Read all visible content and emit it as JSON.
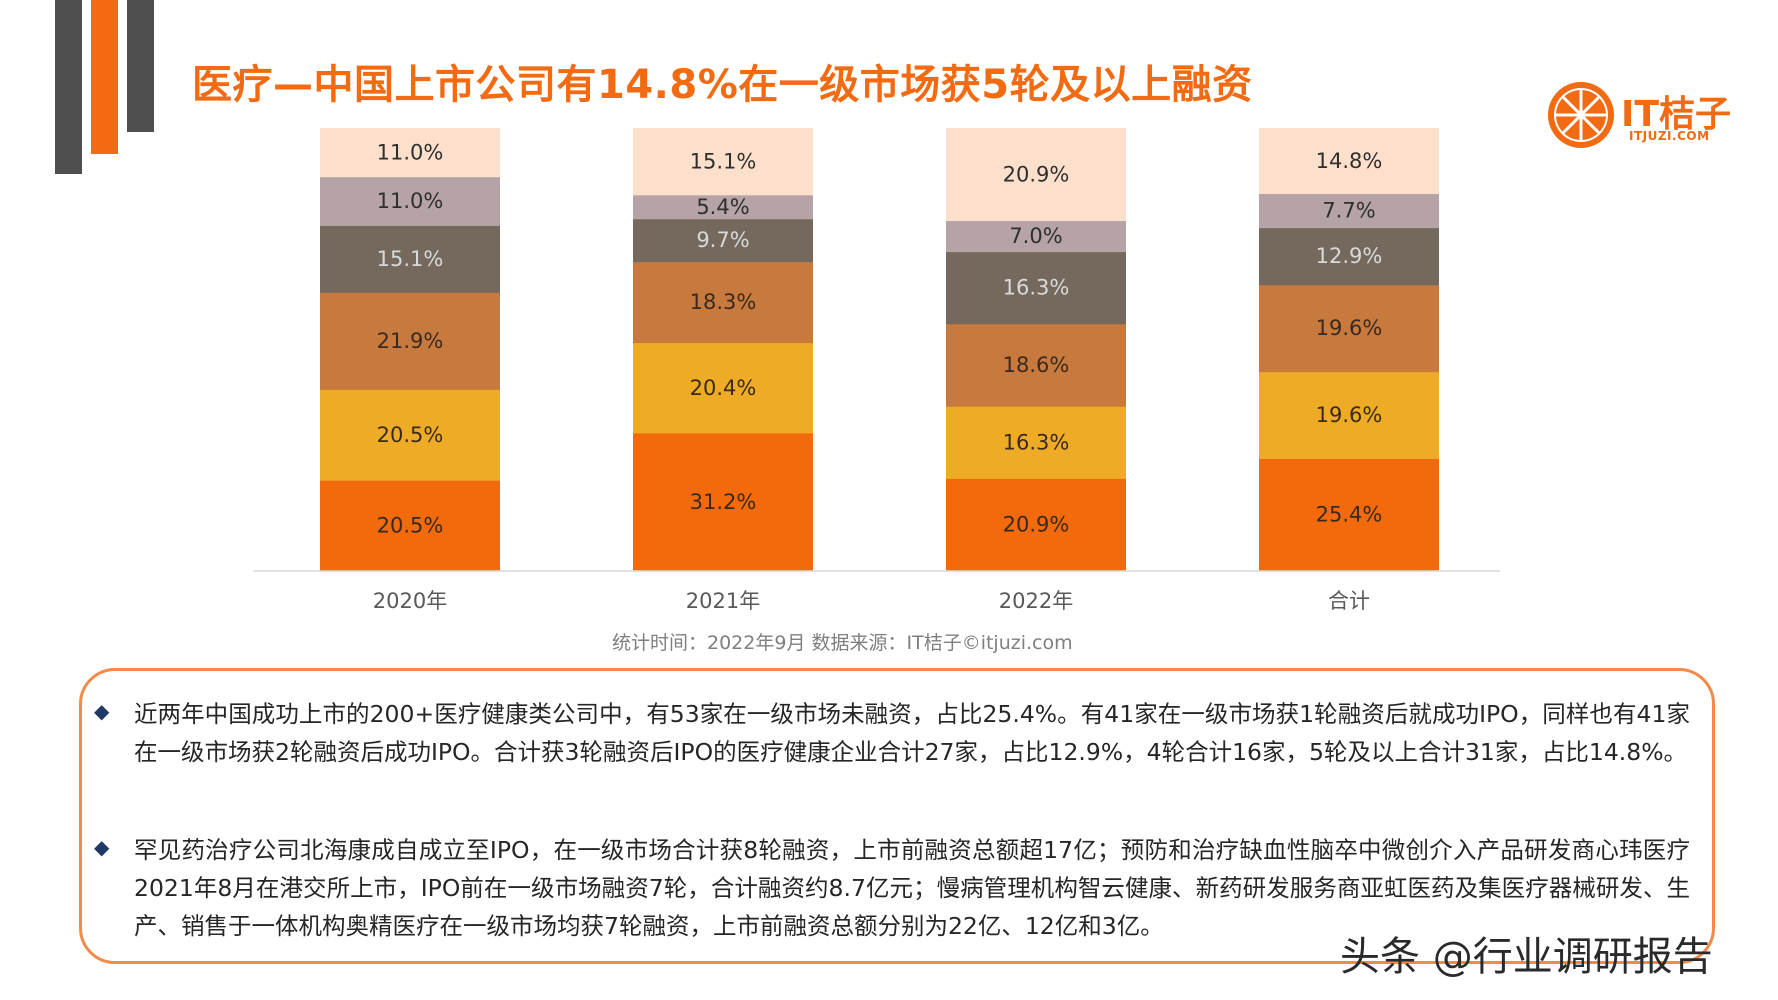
{
  "title": "医疗—中国上市公司有14.8%在一级市场获5轮及以上融资",
  "logo": {
    "name": "IT桔子",
    "url": "ITJUZI.COM"
  },
  "colors": {
    "accent": "#f26a12",
    "seg_0": "#f26a0c",
    "seg_1": "#eeab26",
    "seg_2": "#c87a3e",
    "seg_3": "#75695d",
    "seg_4": "#b5a3a6",
    "seg_5": "#fde0cc"
  },
  "chart_data": {
    "type": "bar",
    "stacked": true,
    "percent_stacked": true,
    "categories": [
      "2020年",
      "2021年",
      "2022年",
      "合计"
    ],
    "series": [
      {
        "values": [
          20.5,
          31.2,
          20.9,
          25.4
        ],
        "labels": [
          "20.5%",
          "31.2%",
          "20.9%",
          "25.4%"
        ]
      },
      {
        "values": [
          20.5,
          20.4,
          16.3,
          19.6
        ],
        "labels": [
          "20.5%",
          "20.4%",
          "16.3%",
          "19.6%"
        ]
      },
      {
        "values": [
          21.9,
          18.3,
          18.6,
          19.6
        ],
        "labels": [
          "21.9%",
          "18.3%",
          "18.6%",
          "19.6%"
        ]
      },
      {
        "values": [
          15.1,
          9.7,
          16.3,
          12.9
        ],
        "labels": [
          "15.1%",
          "9.7%",
          "16.3%",
          "12.9%"
        ]
      },
      {
        "values": [
          11.0,
          5.4,
          7.0,
          7.7
        ],
        "labels": [
          "11.0%",
          "5.4%",
          "7.0%",
          "7.7%"
        ]
      },
      {
        "values": [
          11.0,
          15.1,
          20.9,
          14.8
        ],
        "labels": [
          "11.0%",
          "15.1%",
          "20.9%",
          "14.8%"
        ]
      }
    ],
    "legend": "none",
    "grid": false
  },
  "source_note": "统计时间：2022年9月   数据来源：IT桔子©itjuzi.com",
  "notes": [
    "近两年中国成功上市的200+医疗健康类公司中，有53家在一级市场未融资，占比25.4%。有41家在一级市场获1轮融资后就成功IPO，同样也有41家在一级市场获2轮融资后成功IPO。合计获3轮融资后IPO的医疗健康企业合计27家，占比12.9%，4轮合计16家，5轮及以上合计31家，占比14.8%。",
    "罕见药治疗公司北海康成自成立至IPO，在一级市场合计获8轮融资，上市前融资总额超17亿；预防和治疗缺血性脑卒中微创介入产品研发商心玮医疗2021年8月在港交所上市，IPO前在一级市场融资7轮，合计融资约8.7亿元；慢病管理机构智云健康、新药研发服务商亚虹医药及集医疗器械研发、生产、销售于一体机构奥精医疗在一级市场均获7轮融资，上市前融资总额分别为22亿、12亿和3亿。"
  ],
  "watermark": "头条 @行业调研报告"
}
